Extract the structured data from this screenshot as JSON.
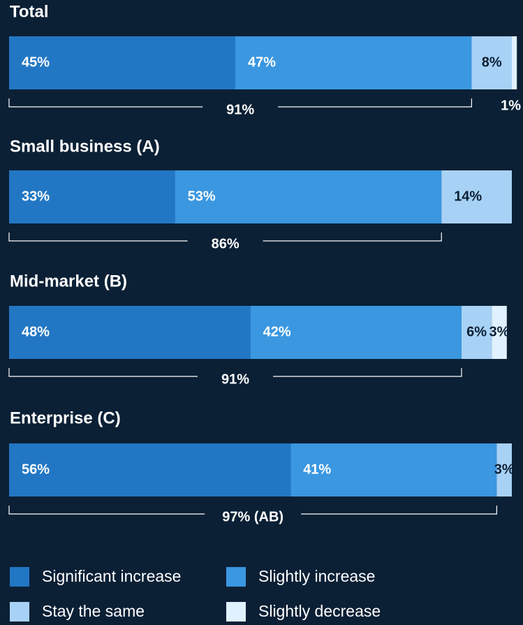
{
  "chart_data": {
    "type": "bar",
    "orientation": "horizontal",
    "stacked": true,
    "categories": [
      "Total",
      "Small business (A)",
      "Mid-market (B)",
      "Enterprise (C)"
    ],
    "series": [
      {
        "name": "Significant increase",
        "color": "#2277c4",
        "values": [
          45,
          33,
          48,
          56
        ],
        "value_labels": [
          "45%",
          "33%",
          "48%",
          "56%"
        ]
      },
      {
        "name": "Slightly increase",
        "color": "#3a97e0",
        "values": [
          47,
          53,
          42,
          41
        ],
        "value_labels": [
          "47%",
          "53%",
          "42%",
          "41%"
        ]
      },
      {
        "name": "Stay the same",
        "color": "#a8d2f5",
        "values": [
          8,
          14,
          6,
          3
        ],
        "value_labels": [
          "8%",
          "14%",
          "6%",
          "3%"
        ]
      },
      {
        "name": "Slightly decrease",
        "color": "#e0f1ff",
        "values": [
          1,
          null,
          3,
          null
        ],
        "value_labels": [
          "1%",
          null,
          "3%",
          null
        ]
      }
    ],
    "brackets": {
      "values": [
        91,
        86,
        91,
        97
      ],
      "labels": [
        "91%",
        "86%",
        "91%",
        "97% (AB)"
      ]
    },
    "xlim": [
      0,
      100
    ],
    "legend": "bottom"
  }
}
